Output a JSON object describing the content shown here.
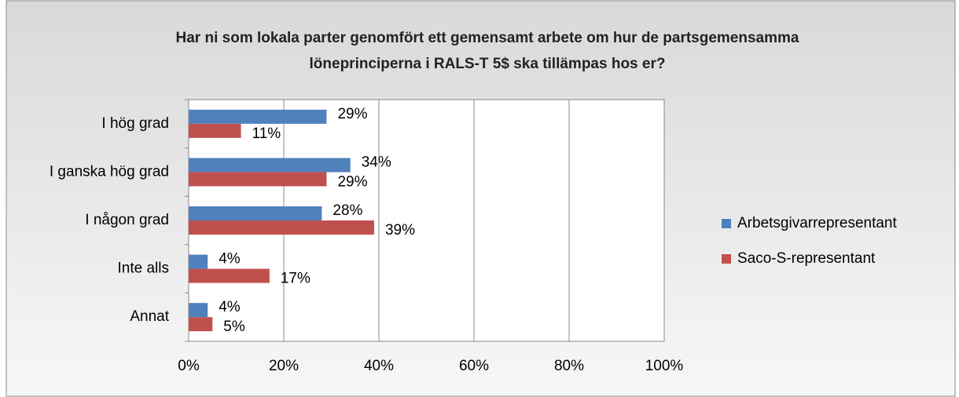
{
  "chart_data": {
    "type": "hbar",
    "title": "Har ni som lokala parter genomfört ett gemensamt arbete om hur de partsgemensamma löneprinciperna i RALS-T 5$ ska tillämpas hos er?",
    "categories": [
      "I hög grad",
      "I ganska hög grad",
      "I någon grad",
      "Inte alls",
      "Annat"
    ],
    "series": [
      {
        "name": "Arbetsgivarrepresentant",
        "color": "#4f81bd",
        "values": [
          29,
          34,
          28,
          4,
          4
        ],
        "value_labels": [
          "29%",
          "34%",
          "28%",
          "4%",
          "4%"
        ]
      },
      {
        "name": "Saco-S-representant",
        "color": "#c0504d",
        "values": [
          11,
          29,
          39,
          17,
          5
        ],
        "value_labels": [
          "11%",
          "29%",
          "39%",
          "17%",
          "5%"
        ]
      }
    ],
    "xlim": [
      0,
      100
    ],
    "xticks": [
      {
        "value": 0,
        "label": "0%"
      },
      {
        "value": 20,
        "label": "20%"
      },
      {
        "value": 40,
        "label": "40%"
      },
      {
        "value": 60,
        "label": "60%"
      },
      {
        "value": 80,
        "label": "80%"
      },
      {
        "value": 100,
        "label": "100%"
      }
    ],
    "grid": true,
    "legend": "right"
  }
}
